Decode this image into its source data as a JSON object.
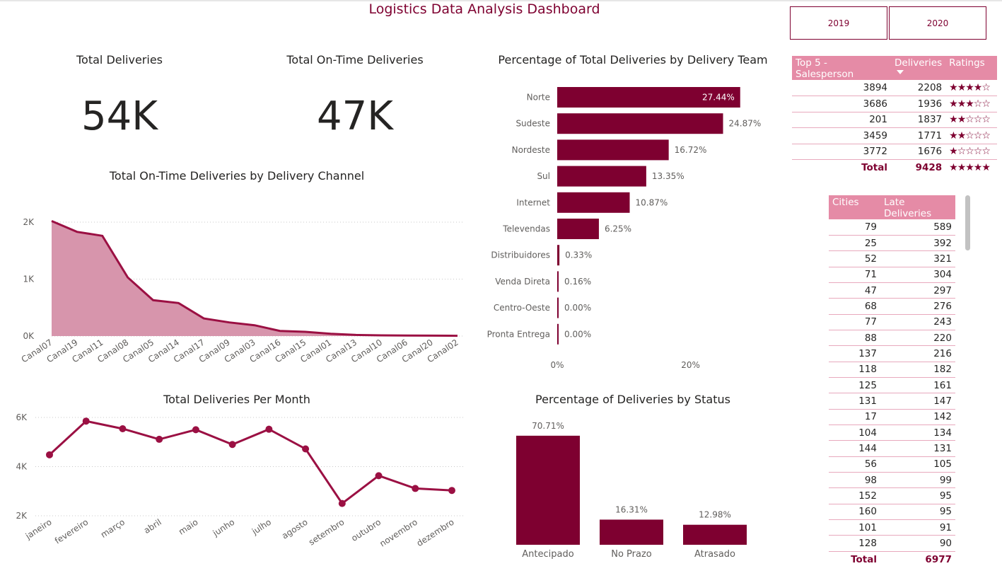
{
  "dashboard": {
    "title": "Logistics Data Analysis Dashboard"
  },
  "slicer": {
    "options": [
      "2019",
      "2020"
    ]
  },
  "kpis": {
    "total_deliveries": {
      "label": "Total Deliveries",
      "value": "54K"
    },
    "on_time": {
      "label": "Total On-Time Deliveries",
      "value": "47K"
    }
  },
  "channel_chart": {
    "title": "Total On-Time Deliveries by Delivery Channel",
    "chart_data": {
      "type": "area",
      "categories": [
        "Canal07",
        "Canal19",
        "Canal11",
        "Canal08",
        "Canal05",
        "Canal14",
        "Canal17",
        "Canal09",
        "Canal03",
        "Canal16",
        "Canal15",
        "Canal01",
        "Canal13",
        "Canal10",
        "Canal06",
        "Canal20",
        "Canal02"
      ],
      "values": [
        2020,
        1830,
        1760,
        1030,
        630,
        580,
        310,
        240,
        190,
        90,
        75,
        40,
        20,
        12,
        10,
        8,
        5
      ],
      "ylim": [
        0,
        2000
      ],
      "yticks": [
        "0K",
        "1K",
        "2K"
      ],
      "grid": true
    },
    "colors": {
      "fill": "#d795ac",
      "line": "#9b1043"
    }
  },
  "team_chart": {
    "title": "Percentage of Total Deliveries by Delivery Team",
    "chart_data": {
      "type": "bar",
      "orientation": "horizontal",
      "categories": [
        "Norte",
        "Sudeste",
        "Nordeste",
        "Sul",
        "Internet",
        "Televendas",
        "Distribuidores",
        "Venda Direta",
        "Centro-Oeste",
        "Pronta Entrega"
      ],
      "values": [
        27.44,
        24.87,
        16.72,
        13.35,
        10.87,
        6.25,
        0.33,
        0.16,
        0.0,
        0.0
      ],
      "labels": [
        "27.44%",
        "24.87%",
        "16.72%",
        "13.35%",
        "10.87%",
        "6.25%",
        "0.33%",
        "0.16%",
        "0.00%",
        "0.00%"
      ],
      "xticks": [
        "0%",
        "20%"
      ],
      "xlim": [
        0,
        30
      ]
    },
    "colors": {
      "bar": "#7e0030"
    }
  },
  "month_chart": {
    "title": "Total Deliveries Per Month",
    "chart_data": {
      "type": "line",
      "categories": [
        "janeiro",
        "fevereiro",
        "março",
        "abril",
        "maio",
        "junho",
        "julho",
        "agosto",
        "setembro",
        "outubro",
        "novembro",
        "dezembro"
      ],
      "values": [
        4480,
        5850,
        5540,
        5110,
        5500,
        4900,
        5520,
        4720,
        2500,
        3630,
        3110,
        3030
      ],
      "ylim": [
        2000,
        6000
      ],
      "yticks": [
        "2K",
        "4K",
        "6K"
      ],
      "grid": true
    },
    "colors": {
      "line": "#9b1043"
    }
  },
  "status_chart": {
    "title": "Percentage of Deliveries by Status",
    "chart_data": {
      "type": "bar",
      "categories": [
        "Antecipado",
        "No Prazo",
        "Atrasado"
      ],
      "values": [
        70.71,
        16.31,
        12.98
      ],
      "labels": [
        "70.71%",
        "16.31%",
        "12.98%"
      ]
    },
    "colors": {
      "bar": "#7e0030"
    }
  },
  "salesperson_table": {
    "headers": [
      "Top 5 - Salesperson",
      "Deliveries",
      "Ratings"
    ],
    "rows": [
      {
        "id": "3894",
        "deliveries": "2208",
        "rating": "★★★★☆",
        "stars": 4
      },
      {
        "id": "3686",
        "deliveries": "1936",
        "rating": "★★★☆☆",
        "stars": 3
      },
      {
        "id": "201",
        "deliveries": "1837",
        "rating": "★★☆☆☆",
        "stars": 2
      },
      {
        "id": "3459",
        "deliveries": "1771",
        "rating": "★★☆☆☆",
        "stars": 2
      },
      {
        "id": "3772",
        "deliveries": "1676",
        "rating": "★☆☆☆☆",
        "stars": 1
      }
    ],
    "total": {
      "label": "Total",
      "deliveries": "9428",
      "rating": "★★★★★"
    }
  },
  "cities_table": {
    "headers": [
      "Cities",
      "Late Deliveries"
    ],
    "rows": [
      [
        "79",
        "589"
      ],
      [
        "25",
        "392"
      ],
      [
        "52",
        "321"
      ],
      [
        "71",
        "304"
      ],
      [
        "47",
        "297"
      ],
      [
        "68",
        "276"
      ],
      [
        "77",
        "243"
      ],
      [
        "88",
        "220"
      ],
      [
        "137",
        "216"
      ],
      [
        "118",
        "182"
      ],
      [
        "125",
        "161"
      ],
      [
        "131",
        "147"
      ],
      [
        "17",
        "142"
      ],
      [
        "104",
        "134"
      ],
      [
        "144",
        "131"
      ],
      [
        "56",
        "105"
      ],
      [
        "98",
        "99"
      ],
      [
        "152",
        "95"
      ],
      [
        "160",
        "95"
      ],
      [
        "101",
        "91"
      ],
      [
        "128",
        "90"
      ]
    ],
    "total": {
      "label": "Total",
      "value": "6977"
    }
  }
}
